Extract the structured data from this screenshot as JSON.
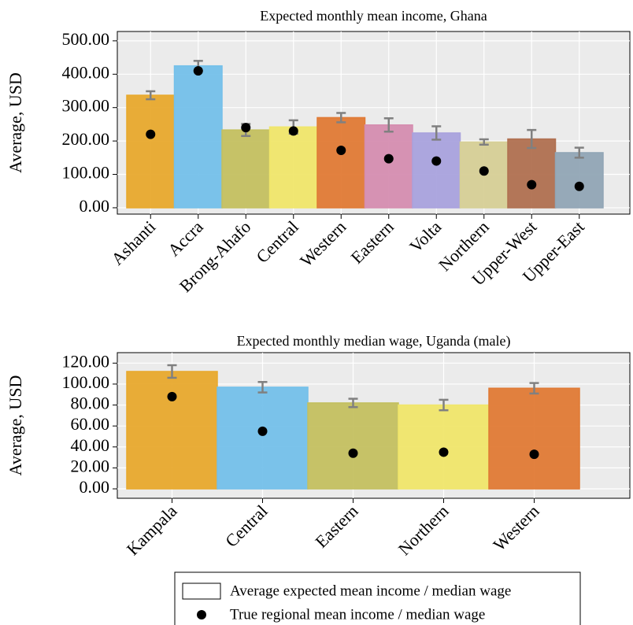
{
  "chart_data": [
    {
      "type": "bar",
      "title": "Expected monthly mean income, Ghana",
      "y_label": "Average, USD",
      "categories": [
        "Ashanti",
        "Accra",
        "Brong-Ahafo",
        "Central",
        "Western",
        "Eastern",
        "Volta",
        "Northern",
        "Upper-West",
        "Upper-East"
      ],
      "series": [
        {
          "values": [
            337,
            425,
            233,
            242,
            270,
            248,
            224,
            197,
            206,
            165
          ],
          "errors": [
            12,
            15,
            18,
            20,
            14,
            20,
            20,
            8,
            27,
            15
          ],
          "colors": [
            "#e8a92d",
            "#74c0ea",
            "#c4c060",
            "#f0e66a",
            "#e07a35",
            "#d58db0",
            "#a9a2dd",
            "#d6cf96",
            "#b07050",
            "#91a5b5"
          ],
          "error_color": "#808080"
        },
        {
          "values": [
            220,
            410,
            240,
            230,
            172,
            147,
            140,
            110,
            69,
            64
          ],
          "color": "#000000"
        }
      ],
      "ylim": [
        -19,
        528
      ],
      "yticks": [
        {
          "value": 0,
          "label": "0.00"
        },
        {
          "value": 100,
          "label": "100.00"
        },
        {
          "value": 200,
          "label": "200.00"
        },
        {
          "value": 300,
          "label": "300.00"
        },
        {
          "value": 400,
          "label": "400.00"
        },
        {
          "value": 500,
          "label": "500.00"
        }
      ],
      "grid": true
    },
    {
      "type": "bar",
      "title": "Expected monthly median wage, Uganda (male)",
      "y_label": "Average, USD",
      "categories": [
        "Kampala",
        "Central",
        "Eastern",
        "Northern",
        "Western"
      ],
      "series": [
        {
          "values": [
            112,
            97,
            82,
            80,
            96
          ],
          "errors": [
            6,
            5,
            4,
            5,
            5
          ],
          "colors": [
            "#e8a92d",
            "#74c0ea",
            "#c4c060",
            "#f0e66a",
            "#e07a35"
          ],
          "error_color": "#808080"
        },
        {
          "values": [
            88,
            55,
            34,
            35,
            33
          ],
          "color": "#000000"
        }
      ],
      "ylim": [
        -9,
        130
      ],
      "yticks": [
        {
          "value": 0,
          "label": "0.00"
        },
        {
          "value": 20,
          "label": "20.00"
        },
        {
          "value": 40,
          "label": "40.00"
        },
        {
          "value": 60,
          "label": "60.00"
        },
        {
          "value": 80,
          "label": "80.00"
        },
        {
          "value": 100,
          "label": "100.00"
        },
        {
          "value": 120,
          "label": "120.00"
        }
      ],
      "grid": true
    }
  ],
  "legend": {
    "entries": [
      "Average expected mean income / median wage",
      "True regional mean income / median wage"
    ]
  }
}
